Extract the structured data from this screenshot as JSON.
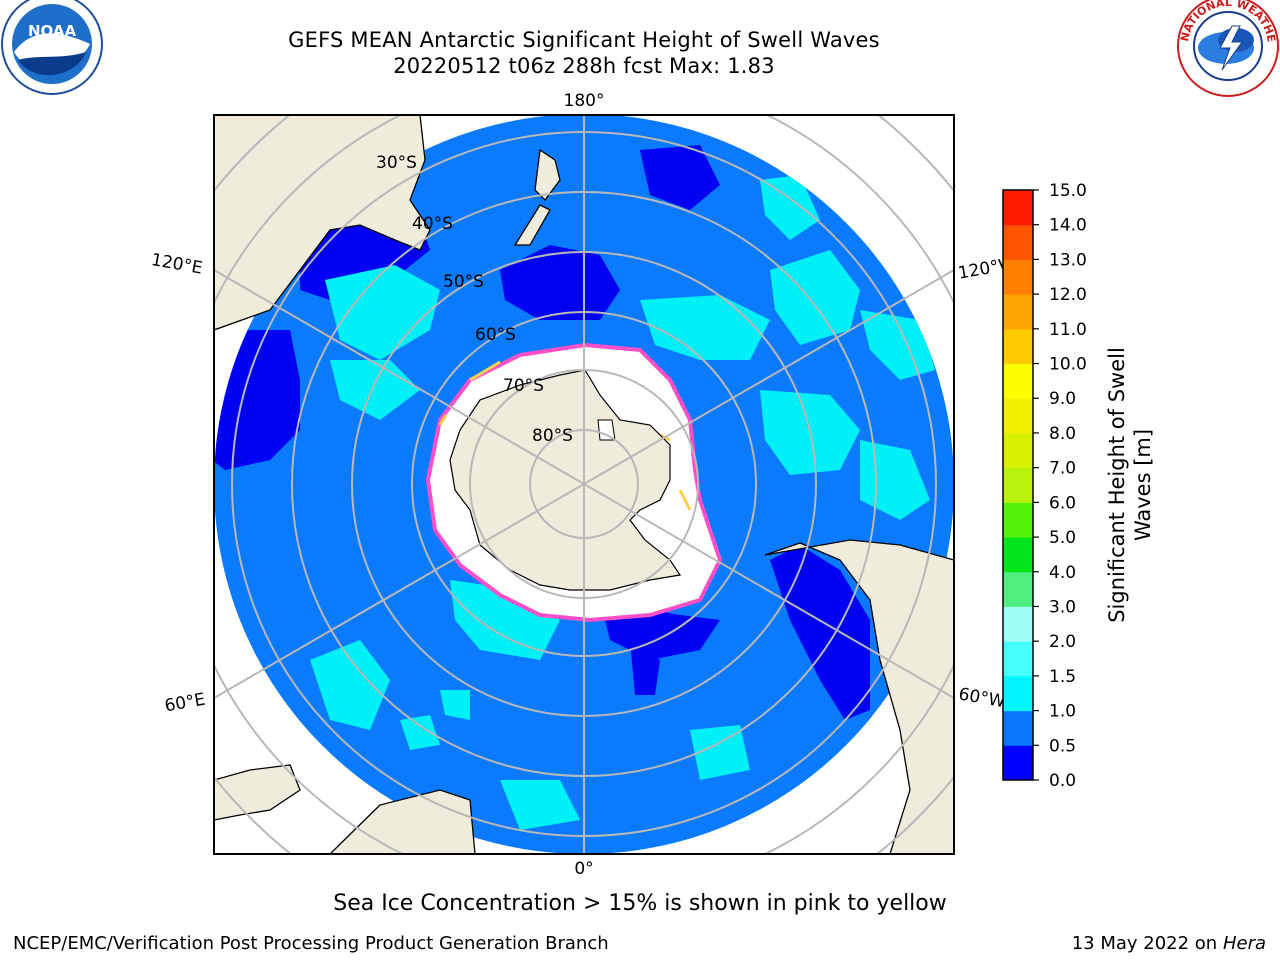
{
  "title": "GEFS MEAN Antarctic Significant Height of Swell Waves",
  "subtitle": "20220512 t06z 288h fcst   Max: 1.83",
  "logos": {
    "left": "NOAA",
    "right": "NATIONAL WEATHER SERVICE"
  },
  "map": {
    "longitude_labels": {
      "top": "180°",
      "bottom": "0°",
      "upper_left": "120°E",
      "upper_right": "120°W",
      "lower_left": "60°E",
      "lower_right": "60°W"
    },
    "latitude_labels": [
      "30°S",
      "40°S",
      "50°S",
      "60°S",
      "70°S",
      "80°S"
    ],
    "colors": {
      "land": "#efecdc",
      "ocean_main": "#0a7aff",
      "low_swell": "#0000f2",
      "mid_swell": "#00f0f8",
      "ice_edge": "#ff4fc8",
      "ice_yellow": "#ffd24a"
    }
  },
  "colorbar": {
    "label_line1": "Significant Height of Swell",
    "label_line2": "Waves [m]",
    "ticks": [
      "0.0",
      "0.5",
      "1.0",
      "1.5",
      "2.0",
      "3.0",
      "4.0",
      "5.0",
      "6.0",
      "7.0",
      "8.0",
      "9.0",
      "10.0",
      "11.0",
      "12.0",
      "13.0",
      "14.0",
      "15.0"
    ],
    "colors": [
      "#0000ff",
      "#0d78ff",
      "#00f5ff",
      "#45ffff",
      "#a0fff6",
      "#50f080",
      "#00e61a",
      "#57f20c",
      "#b6f20b",
      "#d9f000",
      "#f2f000",
      "#ffff00",
      "#ffcc00",
      "#ffa500",
      "#ff8000",
      "#ff5300",
      "#ff1a00"
    ]
  },
  "note": "Sea Ice Concentration > 15% is shown in pink to yellow",
  "credit": "NCEP/EMC/Verification Post Processing Product Generation Branch",
  "date_text": "13 May 2022 on",
  "host": "Hera"
}
